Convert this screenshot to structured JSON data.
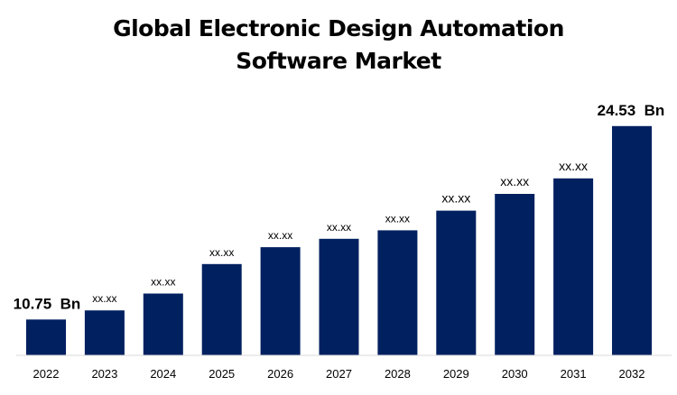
{
  "chart_data": {
    "type": "bar",
    "title_line1": "Global Electronic Design Automation",
    "title_line2": "Software Market",
    "categories": [
      "2022",
      "2023",
      "2024",
      "2025",
      "2026",
      "2027",
      "2028",
      "2029",
      "2030",
      "2031",
      "2032"
    ],
    "values": [
      10.75,
      11.4,
      12.6,
      14.7,
      15.9,
      16.5,
      17.1,
      18.5,
      19.7,
      20.8,
      24.53
    ],
    "data_labels": [
      "10.75  Bn",
      "xx.xx",
      "xx.xx",
      "xx.xx",
      "xx.xx",
      "xx.xx",
      "xx.xx",
      "xx.xx",
      "xx.xx",
      "xx.xx",
      "24.53  Bn"
    ],
    "xlabel": "",
    "ylabel": "",
    "ylim": [
      8.2,
      25.8
    ],
    "grid": false,
    "legend": "none",
    "bar_color": "#002060"
  }
}
